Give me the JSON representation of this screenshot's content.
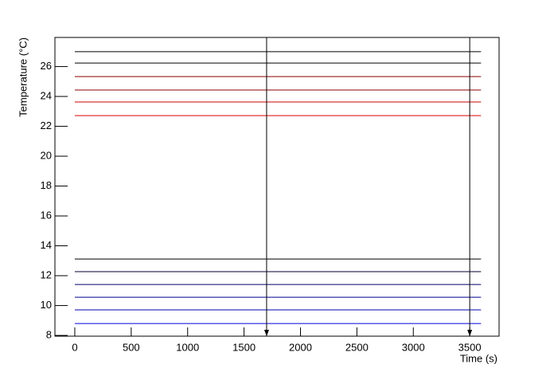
{
  "chart_data": {
    "type": "line",
    "xlabel": "Time (s)",
    "ylabel": "Temperature (°C)",
    "x": [
      0,
      3600
    ],
    "series": [
      {
        "color": "#000000",
        "values": [
          27.0,
          27.0
        ]
      },
      {
        "color": "#000000",
        "values": [
          26.24,
          26.24
        ]
      },
      {
        "color": "#8b0000",
        "values": [
          25.33,
          25.33
        ]
      },
      {
        "color": "#8b0000",
        "values": [
          24.43,
          24.43
        ]
      },
      {
        "color": "#cc0000",
        "values": [
          23.63,
          23.63
        ]
      },
      {
        "color": "#e00000",
        "values": [
          22.72,
          22.72
        ]
      },
      {
        "color": "#000000",
        "values": [
          13.12,
          13.12
        ]
      },
      {
        "color": "#000033",
        "values": [
          12.27,
          12.27
        ]
      },
      {
        "color": "#000066",
        "values": [
          11.41,
          11.41
        ]
      },
      {
        "color": "#00008b",
        "values": [
          10.56,
          10.56
        ]
      },
      {
        "color": "#0000b0",
        "values": [
          9.71,
          9.71
        ]
      },
      {
        "color": "#0000dd",
        "values": [
          8.8,
          8.8
        ]
      }
    ],
    "vlines": [
      1700,
      3500
    ],
    "xlim": [
      -176,
      3760
    ],
    "ylim": [
      7.95,
      27.95
    ],
    "xticks": [
      0,
      500,
      1000,
      1500,
      2000,
      2500,
      3000,
      3500
    ],
    "yticks": [
      8,
      10,
      12,
      14,
      16,
      18,
      20,
      22,
      24,
      26
    ]
  }
}
